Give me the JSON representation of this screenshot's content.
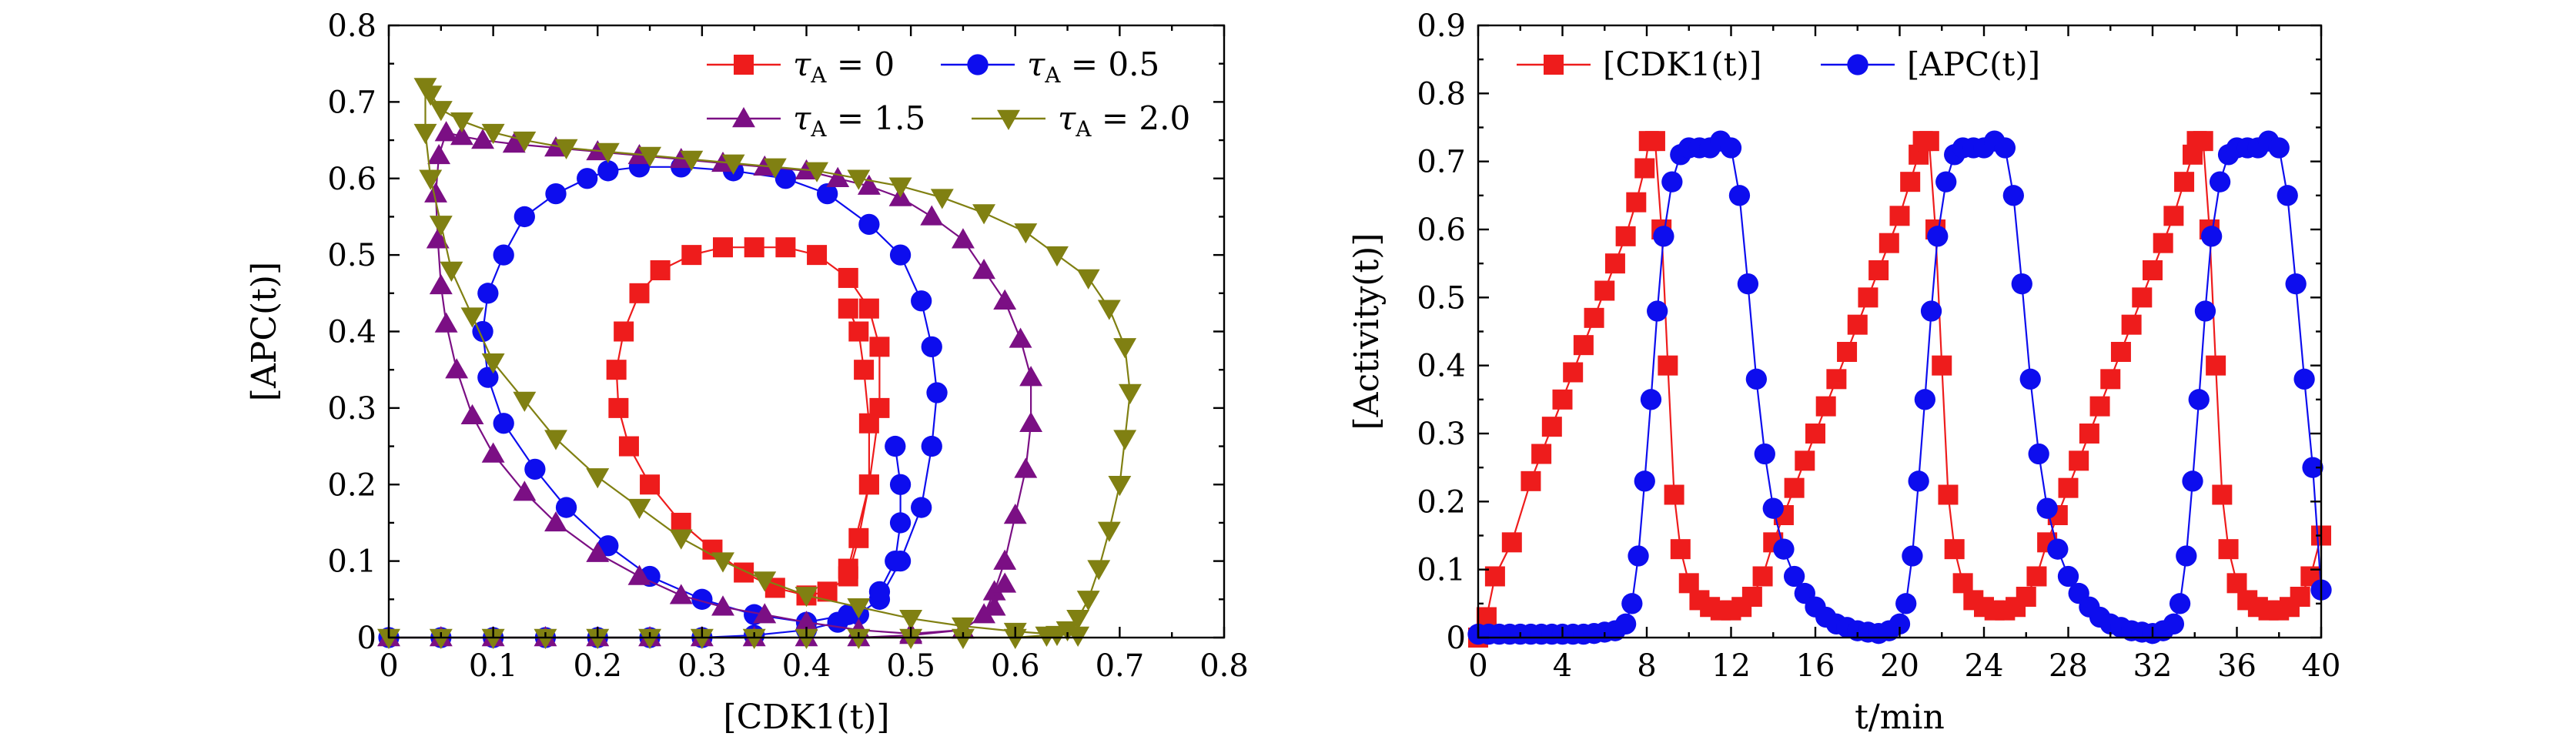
{
  "colors": {
    "red": "#ee1c1c",
    "blue": "#0d0dee",
    "purple": "#7b0f84",
    "olive": "#808012"
  },
  "chart_data": [
    {
      "type": "line",
      "title": "",
      "xlabel": "[CDK1(t)]",
      "ylabel": "[APC(t)]",
      "xlim": [
        0,
        0.8
      ],
      "ylim": [
        0,
        0.8
      ],
      "xticks": [
        "0",
        "0.1",
        "0.2",
        "0.3",
        "0.4",
        "0.5",
        "0.6",
        "0.7",
        "0.8"
      ],
      "yticks": [
        "0",
        "0.1",
        "0.2",
        "0.3",
        "0.4",
        "0.5",
        "0.6",
        "0.7",
        "0.8"
      ],
      "grid": false,
      "legend_position": "top-right",
      "series": [
        {
          "name": "τA = 0",
          "label_tau": "τ",
          "label_sub": "A",
          "label_val": " = 0",
          "color": "red",
          "marker": "square",
          "x": [
            0.44,
            0.46,
            0.47,
            0.47,
            0.46,
            0.44,
            0.41,
            0.38,
            0.35,
            0.32,
            0.29,
            0.26,
            0.24,
            0.225,
            0.218,
            0.22,
            0.23,
            0.25,
            0.28,
            0.31,
            0.34,
            0.37,
            0.4,
            0.42,
            0.44,
            0.45,
            0.46,
            0.46,
            0.455,
            0.45,
            0.44
          ],
          "y": [
            0.09,
            0.2,
            0.3,
            0.38,
            0.43,
            0.47,
            0.5,
            0.51,
            0.51,
            0.51,
            0.5,
            0.48,
            0.45,
            0.4,
            0.35,
            0.3,
            0.25,
            0.2,
            0.15,
            0.115,
            0.085,
            0.065,
            0.055,
            0.06,
            0.08,
            0.13,
            0.2,
            0.28,
            0.35,
            0.4,
            0.43
          ]
        },
        {
          "name": "τA = 0.5",
          "label_tau": "τ",
          "label_sub": "A",
          "label_val": " = 0.5",
          "color": "blue",
          "marker": "circle",
          "x": [
            0.0,
            0.05,
            0.1,
            0.15,
            0.2,
            0.25,
            0.3,
            0.35,
            0.4,
            0.43,
            0.45,
            0.47,
            0.49,
            0.51,
            0.52,
            0.525,
            0.52,
            0.51,
            0.49,
            0.46,
            0.42,
            0.38,
            0.33,
            0.28,
            0.24,
            0.21,
            0.19,
            0.16,
            0.13,
            0.11,
            0.095,
            0.09,
            0.095,
            0.11,
            0.14,
            0.17,
            0.21,
            0.25,
            0.3,
            0.35,
            0.4,
            0.44,
            0.47,
            0.485,
            0.49,
            0.49,
            0.485
          ],
          "y": [
            0.0,
            0.0,
            0.0,
            0.0,
            0.0,
            0.0,
            0.0,
            0.003,
            0.01,
            0.02,
            0.03,
            0.05,
            0.1,
            0.17,
            0.25,
            0.32,
            0.38,
            0.44,
            0.5,
            0.54,
            0.58,
            0.6,
            0.61,
            0.615,
            0.615,
            0.61,
            0.6,
            0.58,
            0.55,
            0.5,
            0.45,
            0.4,
            0.34,
            0.28,
            0.22,
            0.17,
            0.12,
            0.08,
            0.05,
            0.03,
            0.02,
            0.03,
            0.06,
            0.1,
            0.15,
            0.2,
            0.25
          ]
        },
        {
          "name": "τA = 1.5",
          "label_tau": "τ",
          "label_sub": "A",
          "label_val": " = 1.5",
          "color": "purple",
          "marker": "triangle",
          "x": [
            0.0,
            0.05,
            0.1,
            0.15,
            0.2,
            0.25,
            0.3,
            0.35,
            0.4,
            0.45,
            0.5,
            0.55,
            0.57,
            0.58,
            0.59,
            0.6,
            0.61,
            0.615,
            0.615,
            0.605,
            0.59,
            0.57,
            0.55,
            0.52,
            0.49,
            0.46,
            0.43,
            0.4,
            0.36,
            0.32,
            0.28,
            0.24,
            0.2,
            0.16,
            0.12,
            0.09,
            0.07,
            0.055,
            0.048,
            0.045,
            0.047,
            0.05,
            0.055,
            0.065,
            0.08,
            0.1,
            0.13,
            0.16,
            0.2,
            0.24,
            0.28,
            0.32,
            0.36,
            0.4,
            0.45,
            0.5,
            0.55,
            0.58,
            0.59
          ],
          "y": [
            0.0,
            0.0,
            0.0,
            0.0,
            0.0,
            0.0,
            0.0,
            0.0,
            0.0,
            0.0,
            0.003,
            0.01,
            0.03,
            0.06,
            0.1,
            0.16,
            0.22,
            0.28,
            0.34,
            0.39,
            0.44,
            0.48,
            0.52,
            0.55,
            0.575,
            0.59,
            0.6,
            0.61,
            0.615,
            0.62,
            0.625,
            0.63,
            0.635,
            0.64,
            0.645,
            0.65,
            0.655,
            0.66,
            0.63,
            0.58,
            0.52,
            0.46,
            0.41,
            0.35,
            0.29,
            0.24,
            0.19,
            0.15,
            0.11,
            0.08,
            0.055,
            0.04,
            0.03,
            0.02,
            0.01,
            0.005,
            0.01,
            0.04,
            0.07
          ]
        },
        {
          "name": "τA = 2.0",
          "label_tau": "τ",
          "label_sub": "A",
          "label_val": " = 2.0",
          "color": "olive",
          "marker": "triangle-down",
          "x": [
            0.0,
            0.05,
            0.1,
            0.15,
            0.2,
            0.25,
            0.3,
            0.35,
            0.4,
            0.45,
            0.5,
            0.55,
            0.6,
            0.63,
            0.65,
            0.66,
            0.67,
            0.68,
            0.69,
            0.7,
            0.705,
            0.71,
            0.705,
            0.69,
            0.67,
            0.64,
            0.61,
            0.57,
            0.53,
            0.49,
            0.45,
            0.41,
            0.37,
            0.33,
            0.29,
            0.25,
            0.21,
            0.17,
            0.13,
            0.1,
            0.07,
            0.05,
            0.04,
            0.035,
            0.035,
            0.04,
            0.05,
            0.06,
            0.08,
            0.1,
            0.13,
            0.16,
            0.2,
            0.24,
            0.28,
            0.32,
            0.36,
            0.4,
            0.45,
            0.5,
            0.55,
            0.6,
            0.64,
            0.66
          ],
          "y": [
            0.0,
            0.0,
            0.0,
            0.0,
            0.0,
            0.0,
            0.0,
            0.0,
            0.0,
            0.0,
            0.0,
            0.0,
            0.0,
            0.003,
            0.01,
            0.025,
            0.05,
            0.09,
            0.14,
            0.2,
            0.26,
            0.32,
            0.38,
            0.43,
            0.47,
            0.5,
            0.53,
            0.555,
            0.575,
            0.59,
            0.6,
            0.61,
            0.615,
            0.62,
            0.625,
            0.63,
            0.635,
            0.64,
            0.65,
            0.66,
            0.675,
            0.69,
            0.71,
            0.72,
            0.66,
            0.6,
            0.54,
            0.48,
            0.42,
            0.36,
            0.31,
            0.26,
            0.21,
            0.17,
            0.13,
            0.1,
            0.075,
            0.055,
            0.04,
            0.025,
            0.015,
            0.008,
            0.004,
            0.003
          ]
        }
      ]
    },
    {
      "type": "line",
      "title": "",
      "xlabel": "t/min",
      "ylabel": "[Activity(t)]",
      "xlim": [
        0,
        40
      ],
      "ylim": [
        0,
        0.9
      ],
      "xticks": [
        "0",
        "4",
        "8",
        "12",
        "16",
        "20",
        "24",
        "28",
        "32",
        "36",
        "40"
      ],
      "yticks": [
        "0",
        "0.1",
        "0.2",
        "0.3",
        "0.4",
        "0.5",
        "0.6",
        "0.7",
        "0.8",
        "0.9"
      ],
      "grid": false,
      "legend_position": "top-left",
      "series": [
        {
          "name": "[CDK1(t)]",
          "color": "red",
          "marker": "square",
          "x": [
            0,
            0.4,
            0.8,
            1.6,
            2.5,
            3.0,
            3.5,
            4.0,
            4.5,
            5.0,
            5.5,
            6.0,
            6.5,
            7.0,
            7.5,
            7.9,
            8.1,
            8.4,
            8.7,
            9.0,
            9.3,
            9.6,
            10.0,
            10.5,
            11.0,
            11.5,
            12.0,
            12.5,
            13.0,
            13.5,
            14.0,
            14.5,
            15.0,
            15.5,
            16.0,
            16.5,
            17.0,
            17.5,
            18.0,
            18.5,
            19.0,
            19.5,
            20.0,
            20.5,
            20.9,
            21.1,
            21.4,
            21.7,
            22.0,
            22.3,
            22.6,
            23.0,
            23.5,
            24.0,
            24.5,
            25.0,
            25.5,
            26.0,
            26.5,
            27.0,
            27.5,
            28.0,
            28.5,
            29.0,
            29.5,
            30.0,
            30.5,
            31.0,
            31.5,
            32.0,
            32.5,
            33.0,
            33.5,
            33.9,
            34.1,
            34.4,
            34.7,
            35.0,
            35.3,
            35.6,
            36.0,
            36.5,
            37.0,
            37.5,
            38.0,
            38.5,
            39.0,
            39.5,
            40.0
          ],
          "y": [
            0.0,
            0.03,
            0.09,
            0.14,
            0.23,
            0.27,
            0.31,
            0.35,
            0.39,
            0.43,
            0.47,
            0.51,
            0.55,
            0.59,
            0.64,
            0.69,
            0.73,
            0.73,
            0.6,
            0.4,
            0.21,
            0.13,
            0.08,
            0.055,
            0.045,
            0.04,
            0.04,
            0.045,
            0.06,
            0.09,
            0.14,
            0.18,
            0.22,
            0.26,
            0.3,
            0.34,
            0.38,
            0.42,
            0.46,
            0.5,
            0.54,
            0.58,
            0.62,
            0.67,
            0.71,
            0.73,
            0.73,
            0.6,
            0.4,
            0.21,
            0.13,
            0.08,
            0.055,
            0.045,
            0.04,
            0.04,
            0.045,
            0.06,
            0.09,
            0.14,
            0.18,
            0.22,
            0.26,
            0.3,
            0.34,
            0.38,
            0.42,
            0.46,
            0.5,
            0.54,
            0.58,
            0.62,
            0.67,
            0.71,
            0.73,
            0.73,
            0.6,
            0.4,
            0.21,
            0.13,
            0.08,
            0.055,
            0.045,
            0.04,
            0.04,
            0.045,
            0.06,
            0.09,
            0.15
          ]
        },
        {
          "name": "[APC(t)]",
          "color": "blue",
          "marker": "circle",
          "x": [
            0,
            0.5,
            1.0,
            1.5,
            2.0,
            2.5,
            3.0,
            3.5,
            4.0,
            4.5,
            5.0,
            5.5,
            6.0,
            6.5,
            7.0,
            7.3,
            7.6,
            7.9,
            8.2,
            8.5,
            8.8,
            9.2,
            9.6,
            10.0,
            10.5,
            11.0,
            11.5,
            12.0,
            12.4,
            12.8,
            13.2,
            13.6,
            14.0,
            14.5,
            15.0,
            15.5,
            16.0,
            16.5,
            17.0,
            17.5,
            18.0,
            18.5,
            19.0,
            19.5,
            20.0,
            20.3,
            20.6,
            20.9,
            21.2,
            21.5,
            21.8,
            22.2,
            22.6,
            23.0,
            23.5,
            24.0,
            24.5,
            25.0,
            25.4,
            25.8,
            26.2,
            26.6,
            27.0,
            27.5,
            28.0,
            28.5,
            29.0,
            29.5,
            30.0,
            30.5,
            31.0,
            31.5,
            32.0,
            32.5,
            33.0,
            33.3,
            33.6,
            33.9,
            34.2,
            34.5,
            34.8,
            35.2,
            35.6,
            36.0,
            36.5,
            37.0,
            37.5,
            38.0,
            38.4,
            38.8,
            39.2,
            39.6,
            40.0
          ],
          "y": [
            0.005,
            0.005,
            0.005,
            0.005,
            0.005,
            0.005,
            0.005,
            0.005,
            0.005,
            0.005,
            0.005,
            0.006,
            0.008,
            0.01,
            0.02,
            0.05,
            0.12,
            0.23,
            0.35,
            0.48,
            0.59,
            0.67,
            0.71,
            0.72,
            0.72,
            0.72,
            0.73,
            0.72,
            0.65,
            0.52,
            0.38,
            0.27,
            0.19,
            0.13,
            0.09,
            0.065,
            0.045,
            0.03,
            0.02,
            0.015,
            0.01,
            0.008,
            0.006,
            0.01,
            0.02,
            0.05,
            0.12,
            0.23,
            0.35,
            0.48,
            0.59,
            0.67,
            0.71,
            0.72,
            0.72,
            0.72,
            0.73,
            0.72,
            0.65,
            0.52,
            0.38,
            0.27,
            0.19,
            0.13,
            0.09,
            0.065,
            0.045,
            0.03,
            0.02,
            0.015,
            0.01,
            0.008,
            0.006,
            0.01,
            0.02,
            0.05,
            0.12,
            0.23,
            0.35,
            0.48,
            0.59,
            0.67,
            0.71,
            0.72,
            0.72,
            0.72,
            0.73,
            0.72,
            0.65,
            0.52,
            0.38,
            0.25,
            0.07
          ]
        }
      ]
    }
  ]
}
